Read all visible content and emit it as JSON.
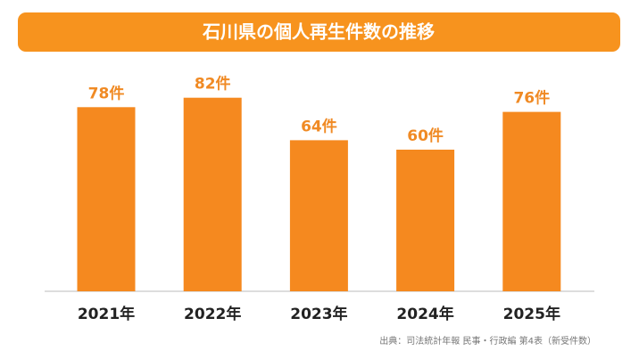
{
  "chart_data": {
    "type": "bar",
    "title": "石川県の個人再生件数の推移",
    "categories": [
      "2021年",
      "2022年",
      "2023年",
      "2024年",
      "2025年"
    ],
    "values": [
      78,
      82,
      64,
      60,
      76
    ],
    "value_labels": [
      "78件",
      "82件",
      "64件",
      "60件",
      "76件"
    ],
    "color": "#f5891f",
    "source": "出典：司法統計年報 民事・行政編 第4表（新受件数）"
  }
}
